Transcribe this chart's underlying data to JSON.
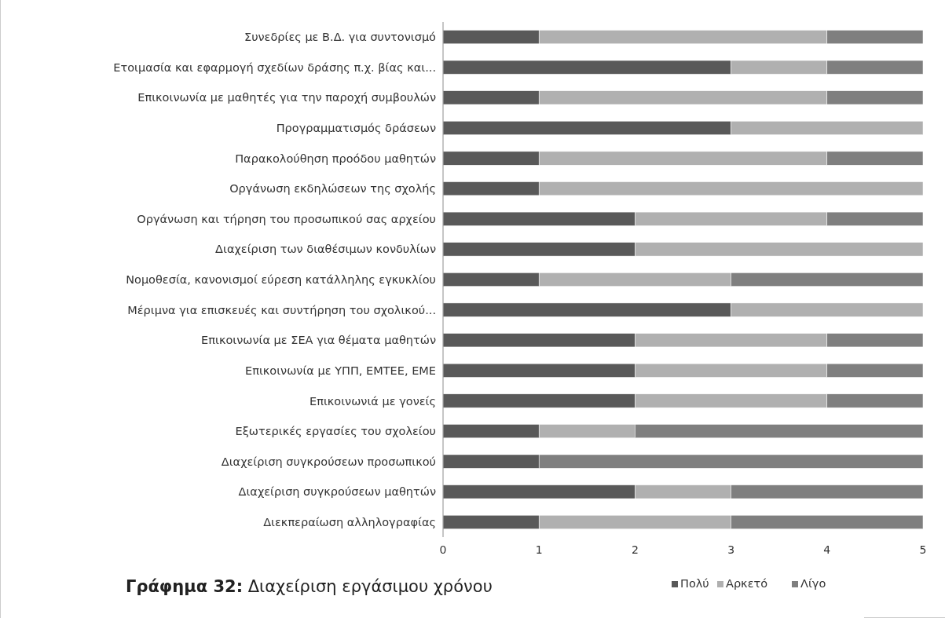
{
  "chart_data": {
    "type": "bar",
    "orientation": "horizontal",
    "stacked": true,
    "title": "Γράφημα 32: Διαχείριση εργάσιμου χρόνου",
    "categories": [
      "Συνεδρίες με Β.Δ. για συντονισμό",
      "Ετοιμασία και εφαρμογή σχεδίων δράσης π.χ. βίας και...",
      "Επικοινωνία με μαθητές για την παροχή συμβουλών",
      "Προγραμματισμός δράσεων",
      "Παρακολούθηση προόδου μαθητών",
      "Οργάνωση εκδηλώσεων της σχολής",
      "Οργάνωση και τήρηση του προσωπικού σας αρχείου",
      "Διαχείριση των διαθέσιμων κονδυλίων",
      "Νομοθεσία, κανονισμοί εύρεση κατάλληλης εγκυκλίου",
      "Μέριμνα για επισκευές και συντήρηση του σχολικού...",
      "Επικοινωνία με ΣΕΑ για θέματα μαθητών",
      "Επικοινωνία με ΥΠΠ, ΕΜΤΕΕ, ΕΜΕ",
      "Επικοινωνιά με γονείς",
      "Εξωτερικές εργασίες του σχολείου",
      "Διαχείριση συγκρούσεων προσωπικού",
      "Διαχείριση συγκρούσεων μαθητών",
      "Διεκπεραίωση αλληλογραφίας"
    ],
    "series": [
      {
        "name": "Πολύ",
        "color": "#595959",
        "values": [
          1,
          3,
          1,
          3,
          1,
          1,
          2,
          2,
          1,
          3,
          2,
          2,
          2,
          1,
          1,
          2,
          1
        ]
      },
      {
        "name": "Αρκετό",
        "color": "#b0b0b0",
        "values": [
          3,
          1,
          3,
          2,
          3,
          4,
          2,
          3,
          2,
          2,
          2,
          2,
          2,
          1,
          0,
          1,
          2
        ]
      },
      {
        "name": "Λίγο",
        "color": "#7f7f7f",
        "values": [
          1,
          1,
          1,
          0,
          1,
          0,
          1,
          0,
          2,
          0,
          1,
          1,
          1,
          3,
          4,
          2,
          2
        ]
      }
    ],
    "xlim": [
      0,
      5
    ],
    "xticks": [
      0,
      1,
      2,
      3,
      4,
      5
    ],
    "grid": false,
    "legend": "bottom right"
  }
}
